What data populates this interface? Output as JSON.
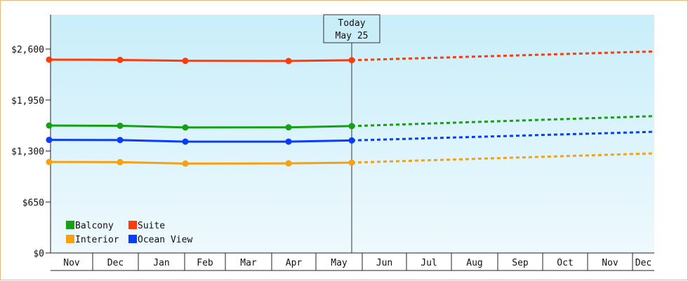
{
  "chart_data": {
    "type": "line",
    "title": "",
    "xlabel": "",
    "ylabel": "",
    "x": [
      "Nov",
      "Dec",
      "Jan",
      "Feb",
      "Mar",
      "Apr",
      "May",
      "Jun",
      "Jul",
      "Aug",
      "Sep",
      "Oct",
      "Nov",
      "Dec"
    ],
    "y_ticks": [
      "$0",
      "$650",
      "$1,300",
      "$1,950",
      "$2,600"
    ],
    "ylim": [
      0,
      2600
    ],
    "grid": false,
    "legend_position": "bottom-left",
    "today_marker": {
      "line1": "Today",
      "line2": "May 25"
    },
    "series": [
      {
        "name": "Balcony",
        "color": "#16a016",
        "history": [
          [
            "Nov",
            1625
          ],
          [
            "Dec",
            1622
          ],
          [
            "Feb",
            1600
          ],
          [
            "Apr",
            1602
          ],
          [
            "May 25",
            1618
          ]
        ],
        "forecast": [
          [
            "May 25",
            1618
          ],
          [
            "Dec",
            1745
          ]
        ]
      },
      {
        "name": "Suite",
        "color": "#ff3b0a",
        "history": [
          [
            "Nov",
            2465
          ],
          [
            "Dec",
            2462
          ],
          [
            "Feb",
            2450
          ],
          [
            "Apr",
            2448
          ],
          [
            "May 25",
            2458
          ]
        ],
        "forecast": [
          [
            "May 25",
            2458
          ],
          [
            "Dec",
            2570
          ]
        ]
      },
      {
        "name": "Interior",
        "color": "#f6a012",
        "history": [
          [
            "Nov",
            1160
          ],
          [
            "Dec",
            1158
          ],
          [
            "Feb",
            1140
          ],
          [
            "Apr",
            1142
          ],
          [
            "May 25",
            1152
          ]
        ],
        "forecast": [
          [
            "May 25",
            1152
          ],
          [
            "Dec",
            1270
          ]
        ]
      },
      {
        "name": "Ocean View",
        "color": "#0a3cff",
        "history": [
          [
            "Nov",
            1442
          ],
          [
            "Dec",
            1440
          ],
          [
            "Feb",
            1420
          ],
          [
            "Apr",
            1420
          ],
          [
            "May 25",
            1435
          ]
        ],
        "forecast": [
          [
            "May 25",
            1435
          ],
          [
            "Dec",
            1545
          ]
        ]
      }
    ]
  }
}
